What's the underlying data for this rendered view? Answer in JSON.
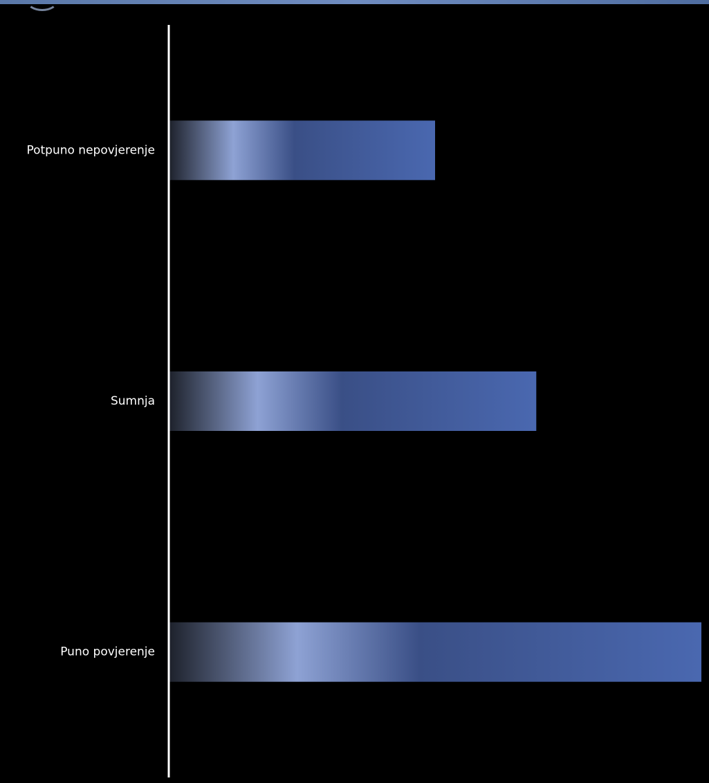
{
  "chart_data": {
    "type": "bar",
    "orientation": "horizontal",
    "categories": [
      "Potpuno nepovjerenje",
      "Sumnja",
      "Puno povjerenje"
    ],
    "values": [
      5,
      6.9,
      10
    ],
    "xlim": [
      0,
      10
    ],
    "title": "",
    "xlabel": "",
    "ylabel": "",
    "grid": false,
    "legend": "none",
    "bar_gradient": [
      "#1e222c",
      "#8ea2d4",
      "#3a4f86",
      "#4a68b0"
    ],
    "axis_color": "#ffffff",
    "label_color": "#ffffff"
  }
}
